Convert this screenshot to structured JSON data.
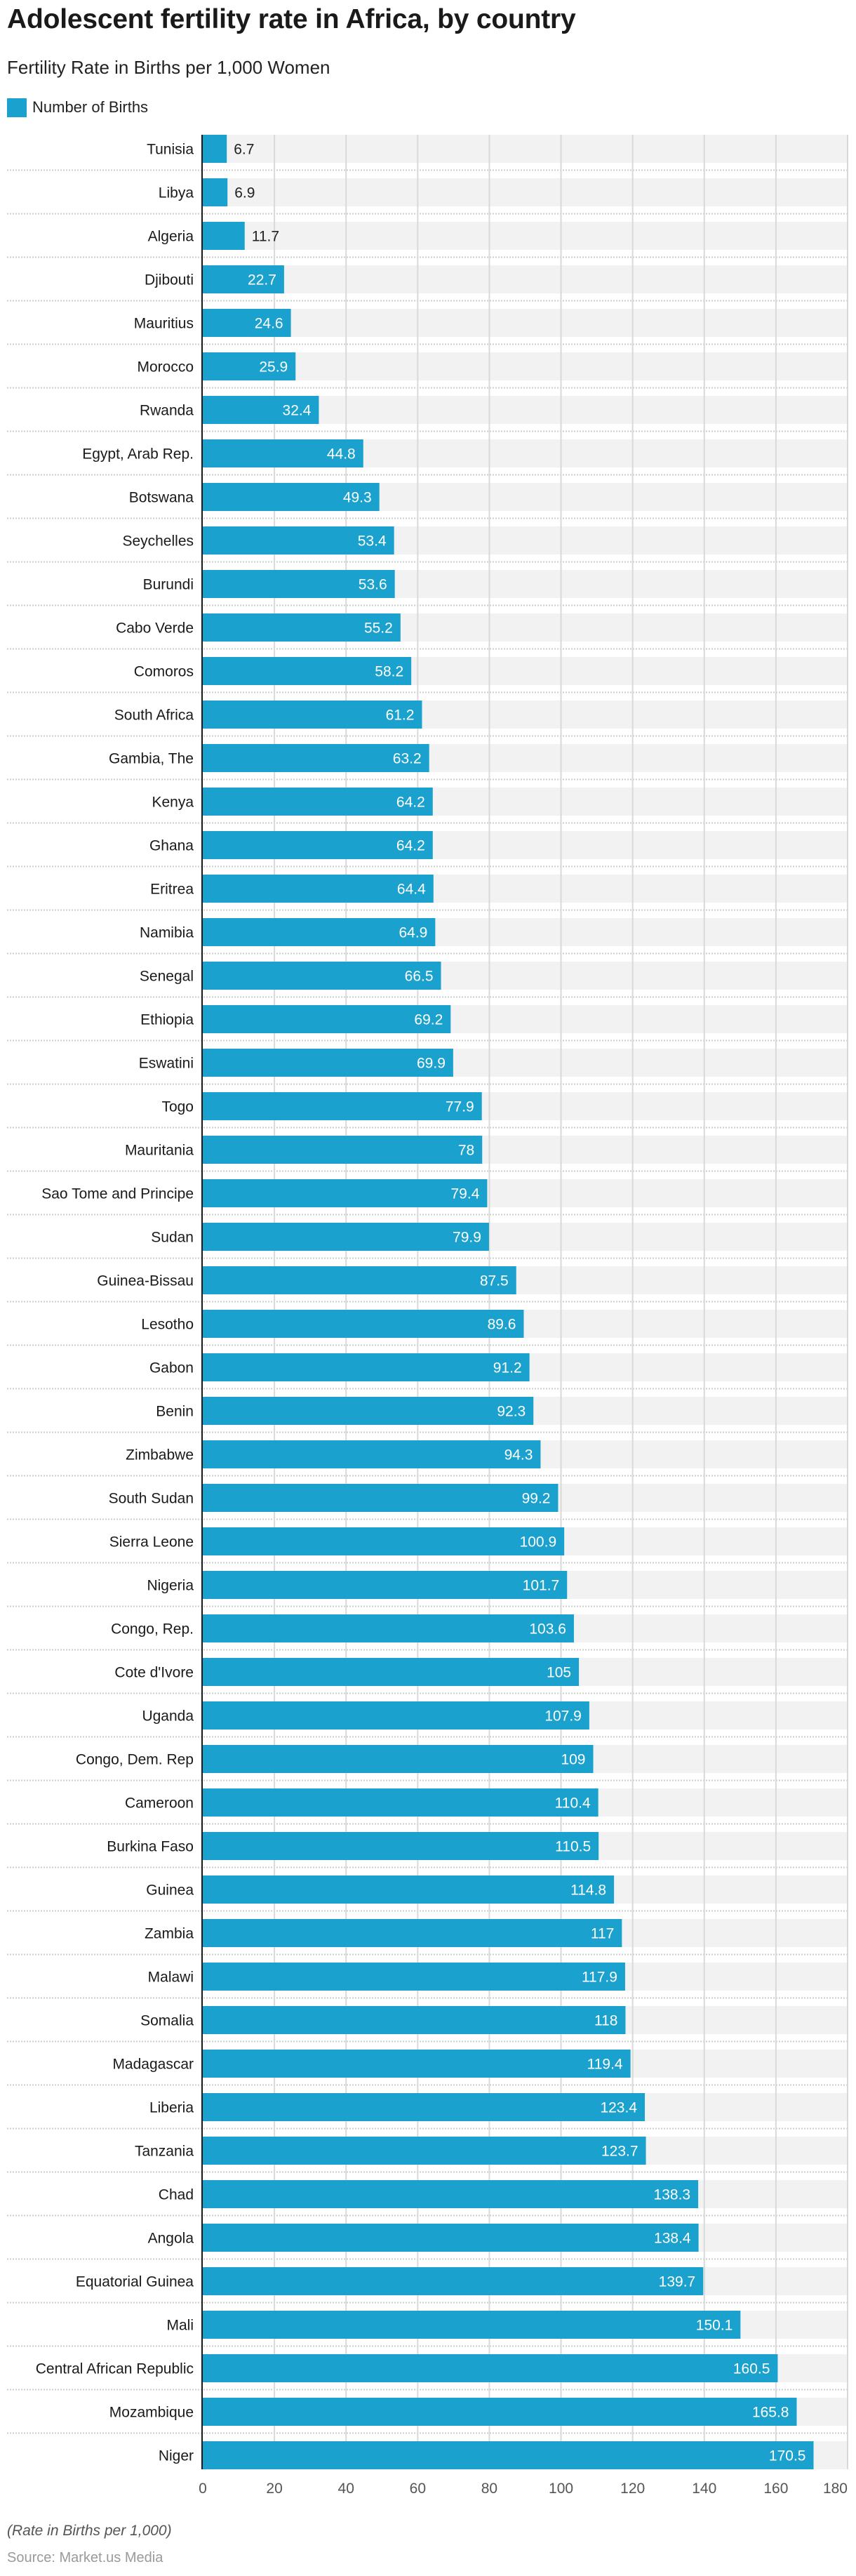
{
  "header": {
    "title": "Adolescent fertility rate in Africa, by country",
    "subtitle": "Fertility Rate in Births per 1,000 Women"
  },
  "legend": {
    "items": [
      {
        "label": "Number of Births",
        "color": "#1aa1ce"
      }
    ]
  },
  "footer": {
    "note": "(Rate in Births per 1,000)",
    "source": "Source: Market.us Media"
  },
  "colors": {
    "bar": "#1aa1ce",
    "band": "#f2f2f2",
    "grid": "#d9d9d9",
    "separator": "#cccccc",
    "axis": "#1a1a1a",
    "label_inside": "#ffffff",
    "label_outside": "#222222",
    "tick_label": "#555555"
  },
  "chart_data": {
    "type": "bar",
    "orientation": "horizontal",
    "title": "Adolescent fertility rate in Africa, by country",
    "subtitle": "Fertility Rate in Births per 1,000 Women",
    "xlabel": "",
    "ylabel": "",
    "xlim": [
      0,
      180
    ],
    "xticks": [
      0,
      20,
      40,
      60,
      80,
      100,
      120,
      140,
      160,
      180
    ],
    "grid": true,
    "legend_position": "top-left",
    "series": [
      {
        "name": "Number of Births",
        "color": "#1aa1ce"
      }
    ],
    "categories": [
      "Tunisia",
      "Libya",
      "Algeria",
      "Djibouti",
      "Mauritius",
      "Morocco",
      "Rwanda",
      "Egypt, Arab Rep.",
      "Botswana",
      "Seychelles",
      "Burundi",
      "Cabo Verde",
      "Comoros",
      "South Africa",
      "Gambia, The",
      "Kenya",
      "Ghana",
      "Eritrea",
      "Namibia",
      "Senegal",
      "Ethiopia",
      "Eswatini",
      "Togo",
      "Mauritania",
      "Sao Tome and Principe",
      "Sudan",
      "Guinea-Bissau",
      "Lesotho",
      "Gabon",
      "Benin",
      "Zimbabwe",
      "South Sudan",
      "Sierra Leone",
      "Nigeria",
      "Congo, Rep.",
      "Cote d'Ivore",
      "Uganda",
      "Congo, Dem. Rep",
      "Cameroon",
      "Burkina Faso",
      "Guinea",
      "Zambia",
      "Malawi",
      "Somalia",
      "Madagascar",
      "Liberia",
      "Tanzania",
      "Chad",
      "Angola",
      "Equatorial Guinea",
      "Mali",
      "Central African Republic",
      "Mozambique",
      "Niger"
    ],
    "values": [
      6.7,
      6.9,
      11.7,
      22.7,
      24.6,
      25.9,
      32.4,
      44.8,
      49.3,
      53.4,
      53.6,
      55.2,
      58.2,
      61.2,
      63.2,
      64.2,
      64.2,
      64.4,
      64.9,
      66.5,
      69.2,
      69.9,
      77.9,
      78,
      79.4,
      79.9,
      87.5,
      89.6,
      91.2,
      92.3,
      94.3,
      99.2,
      100.9,
      101.7,
      103.6,
      105,
      107.9,
      109,
      110.4,
      110.5,
      114.8,
      117,
      117.9,
      118,
      119.4,
      123.4,
      123.7,
      138.3,
      138.4,
      139.7,
      150.1,
      160.5,
      165.8,
      170.5
    ],
    "value_labels": [
      "6.7",
      "6.9",
      "11.7",
      "22.7",
      "24.6",
      "25.9",
      "32.4",
      "44.8",
      "49.3",
      "53.4",
      "53.6",
      "55.2",
      "58.2",
      "61.2",
      "63.2",
      "64.2",
      "64.2",
      "64.4",
      "64.9",
      "66.5",
      "69.2",
      "69.9",
      "77.9",
      "78",
      "79.4",
      "79.9",
      "87.5",
      "89.6",
      "91.2",
      "92.3",
      "94.3",
      "99.2",
      "100.9",
      "101.7",
      "103.6",
      "105",
      "107.9",
      "109",
      "110.4",
      "110.5",
      "114.8",
      "117",
      "117.9",
      "118",
      "119.4",
      "123.4",
      "123.7",
      "138.3",
      "138.4",
      "139.7",
      "150.1",
      "160.5",
      "165.8",
      "170.5"
    ],
    "annotations": [
      "(Rate in Births per 1,000)",
      "Source: Market.us Media"
    ]
  }
}
